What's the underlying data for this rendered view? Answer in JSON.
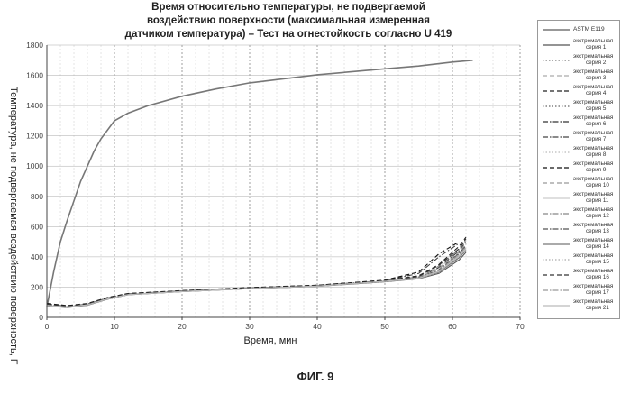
{
  "title_lines": [
    "Время относительно температуры, не подвергаемой",
    "воздействию поверхности (максимальная измеренная",
    "датчиком температура) – Тест на огнестойкость согласно U 419"
  ],
  "caption": "ФИГ. 9",
  "chart_data": {
    "type": "line",
    "title": "Время относительно температуры, не подвергаемой воздействию поверхности (максимальная измеренная датчиком температура) – Тест на огнестойкость согласно U 419",
    "xlabel": "Время, мин",
    "ylabel": "Температура, не подвергаемая воздействию поверхность, F",
    "xlim": [
      0,
      70
    ],
    "ylim": [
      0,
      1800
    ],
    "xticks": [
      0,
      10,
      20,
      30,
      40,
      50,
      60,
      70
    ],
    "yticks": [
      0,
      200,
      400,
      600,
      800,
      1000,
      1200,
      1400,
      1600,
      1800
    ],
    "grid": true,
    "legend_position": "right",
    "series": [
      {
        "name": "ASTM E119",
        "color": "#777777",
        "style": "solid",
        "x": [
          0,
          1,
          2,
          3,
          5,
          7,
          8,
          10,
          12,
          15,
          20,
          25,
          30,
          40,
          50,
          55,
          60,
          63
        ],
        "y": [
          68,
          300,
          500,
          640,
          900,
          1100,
          1180,
          1300,
          1350,
          1400,
          1462,
          1510,
          1550,
          1604,
          1643,
          1662,
          1688,
          1700
        ]
      },
      {
        "name": "экстремальная серия 1",
        "color": "#555555",
        "style": "solid",
        "x": [
          0,
          3,
          6,
          9,
          12,
          20,
          30,
          40,
          50,
          55,
          58,
          61,
          62
        ],
        "y": [
          75,
          65,
          80,
          120,
          150,
          170,
          190,
          205,
          235,
          255,
          290,
          380,
          430
        ]
      },
      {
        "name": "экстремальная серия 2",
        "color": "#777777",
        "style": "dotted",
        "x": [
          0,
          3,
          6,
          9,
          12,
          20,
          30,
          40,
          50,
          55,
          58,
          61,
          62
        ],
        "y": [
          80,
          70,
          85,
          125,
          152,
          172,
          192,
          208,
          240,
          260,
          300,
          400,
          460
        ]
      },
      {
        "name": "экстремальная серия 3",
        "color": "#aaaaaa",
        "style": "dashed",
        "x": [
          0,
          3,
          6,
          9,
          12,
          20,
          30,
          40,
          50,
          55,
          58,
          61,
          62
        ],
        "y": [
          85,
          72,
          88,
          128,
          155,
          174,
          194,
          210,
          242,
          265,
          320,
          430,
          480
        ]
      },
      {
        "name": "экстремальная серия 4",
        "color": "#222222",
        "style": "dashed",
        "x": [
          0,
          3,
          6,
          9,
          12,
          20,
          30,
          40,
          50,
          55,
          58,
          61,
          62
        ],
        "y": [
          90,
          75,
          90,
          130,
          157,
          176,
          196,
          212,
          244,
          275,
          350,
          470,
          530
        ]
      },
      {
        "name": "экстремальная серия 5",
        "color": "#666666",
        "style": "dotted",
        "x": [
          0,
          3,
          6,
          9,
          12,
          20,
          30,
          40,
          50,
          55,
          58,
          61,
          62
        ],
        "y": [
          78,
          68,
          82,
          122,
          150,
          171,
          191,
          207,
          238,
          258,
          310,
          420,
          470
        ]
      },
      {
        "name": "экстремальная серия 6",
        "color": "#333333",
        "style": "dashdot",
        "x": [
          0,
          3,
          6,
          9,
          12,
          20,
          30,
          40,
          50,
          55,
          58,
          61,
          62
        ],
        "y": [
          82,
          70,
          84,
          124,
          151,
          172,
          192,
          208,
          241,
          262,
          330,
          440,
          500
        ]
      },
      {
        "name": "экстремальная серия 7",
        "color": "#444444",
        "style": "dashdot",
        "x": [
          0,
          3,
          6,
          9,
          12,
          20,
          30,
          40,
          50,
          55,
          58,
          61
        ],
        "y": [
          88,
          74,
          89,
          129,
          156,
          175,
          195,
          211,
          243,
          290,
          400,
          490
        ]
      },
      {
        "name": "экстремальная серия 8",
        "color": "#bbbbbb",
        "style": "dotted",
        "x": [
          0,
          3,
          6,
          9,
          12,
          20,
          30,
          40,
          50,
          55,
          58,
          61,
          62
        ],
        "y": [
          76,
          66,
          81,
          121,
          149,
          170,
          190,
          206,
          236,
          256,
          295,
          390,
          440
        ]
      },
      {
        "name": "экстремальная серия 9",
        "color": "#111111",
        "style": "dashed",
        "x": [
          0,
          3,
          6,
          9,
          12,
          20,
          30,
          40,
          50,
          55,
          58,
          61
        ],
        "y": [
          92,
          78,
          92,
          132,
          158,
          177,
          197,
          213,
          246,
          300,
          420,
          500
        ]
      },
      {
        "name": "экстремальная серия 10",
        "color": "#999999",
        "style": "dashed",
        "x": [
          0,
          3,
          6,
          9,
          12,
          20,
          30,
          40,
          50,
          55,
          58,
          61,
          62
        ],
        "y": [
          84,
          71,
          86,
          126,
          153,
          173,
          193,
          209,
          241,
          263,
          325,
          435,
          490
        ]
      },
      {
        "name": "экстремальная серия 11",
        "color": "#cccccc",
        "style": "solid",
        "x": [
          0,
          3,
          6,
          9,
          12,
          20,
          30,
          40,
          50,
          55,
          58,
          61,
          62
        ],
        "y": [
          79,
          69,
          83,
          123,
          150,
          171,
          191,
          207,
          239,
          259,
          305,
          410,
          455
        ]
      },
      {
        "name": "серия 12",
        "color": "#888888",
        "style": "dashdot",
        "x": [
          0,
          3,
          6,
          9,
          12,
          20,
          30,
          40,
          50,
          55,
          58,
          61,
          62
        ],
        "y": [
          86,
          73,
          87,
          127,
          154,
          174,
          194,
          210,
          242,
          268,
          340,
          450,
          510
        ]
      },
      {
        "name": "экстремальная серия 13",
        "color": "#555555",
        "style": "dashdot",
        "x": [
          0,
          3,
          6,
          9,
          12,
          20,
          30,
          40,
          50,
          55,
          58,
          61,
          62
        ],
        "y": [
          81,
          70,
          84,
          124,
          151,
          172,
          192,
          208,
          240,
          261,
          315,
          425,
          475
        ]
      },
      {
        "name": "экстремальная серия 14",
        "color": "#777777",
        "style": "solid",
        "x": [
          0,
          3,
          6,
          9,
          12,
          20,
          30,
          40,
          50,
          55,
          58,
          61,
          62
        ],
        "y": [
          77,
          67,
          81,
          121,
          149,
          170,
          190,
          206,
          237,
          257,
          298,
          395,
          445
        ]
      },
      {
        "name": "экстремальная серия 15",
        "color": "#aaaaaa",
        "style": "dotted",
        "x": [
          0,
          3,
          6,
          9,
          12,
          20,
          30,
          40,
          50,
          55,
          58,
          61,
          62
        ],
        "y": [
          83,
          71,
          85,
          125,
          152,
          173,
          193,
          209,
          240,
          262,
          318,
          428,
          485
        ]
      },
      {
        "name": "экстремальная серия 16",
        "color": "#333333",
        "style": "dashed",
        "x": [
          0,
          3,
          6,
          9,
          12,
          20,
          30,
          40,
          50,
          55,
          58,
          61,
          62
        ],
        "y": [
          87,
          74,
          88,
          128,
          155,
          175,
          195,
          211,
          243,
          270,
          345,
          455,
          520
        ]
      },
      {
        "name": "экстремальная серия 17",
        "color": "#999999",
        "style": "dashdot",
        "x": [
          0,
          3,
          6,
          9,
          12,
          20,
          30,
          40,
          50,
          55,
          58,
          61,
          62
        ],
        "y": [
          80,
          69,
          83,
          123,
          150,
          171,
          191,
          207,
          239,
          260,
          308,
          415,
          465
        ]
      },
      {
        "name": "экстремальная серия 21",
        "color": "#bbbbbb",
        "style": "solid",
        "x": [
          0,
          3,
          6,
          9,
          12,
          20,
          30,
          40,
          50,
          55,
          58,
          61,
          62
        ],
        "y": [
          78,
          68,
          82,
          122,
          150,
          171,
          191,
          207,
          238,
          258,
          302,
          405,
          450
        ]
      }
    ]
  },
  "legend_items": [
    {
      "line1": "ASTM E119",
      "line2": ""
    },
    {
      "line1": "экстремальная",
      "line2": "серия 1"
    },
    {
      "line1": "экстремальная",
      "line2": "серия 2"
    },
    {
      "line1": "экстремальная",
      "line2": "серия 3"
    },
    {
      "line1": "экстремальная",
      "line2": "серия 4"
    },
    {
      "line1": "экстремальная",
      "line2": "серия 5"
    },
    {
      "line1": "экстремальная",
      "line2": "серия 6"
    },
    {
      "line1": "экстремальная",
      "line2": "серия 7"
    },
    {
      "line1": "экстремальная",
      "line2": "серия 8"
    },
    {
      "line1": "экстремальная",
      "line2": "серия 9"
    },
    {
      "line1": "экстремальная",
      "line2": "серия 10"
    },
    {
      "line1": "экстремальная",
      "line2": "серия 11"
    },
    {
      "line1": "экстремальная",
      "line2": "серия 12"
    },
    {
      "line1": "экстремальная",
      "line2": "серия 13"
    },
    {
      "line1": "экстремальная",
      "line2": "серия 14"
    },
    {
      "line1": "экстремальная",
      "line2": "серия 15"
    },
    {
      "line1": "экстремальная",
      "line2": "серия 16"
    },
    {
      "line1": "экстремальная",
      "line2": "серия 17"
    },
    {
      "line1": "экстремальная",
      "line2": "серия 21"
    }
  ]
}
